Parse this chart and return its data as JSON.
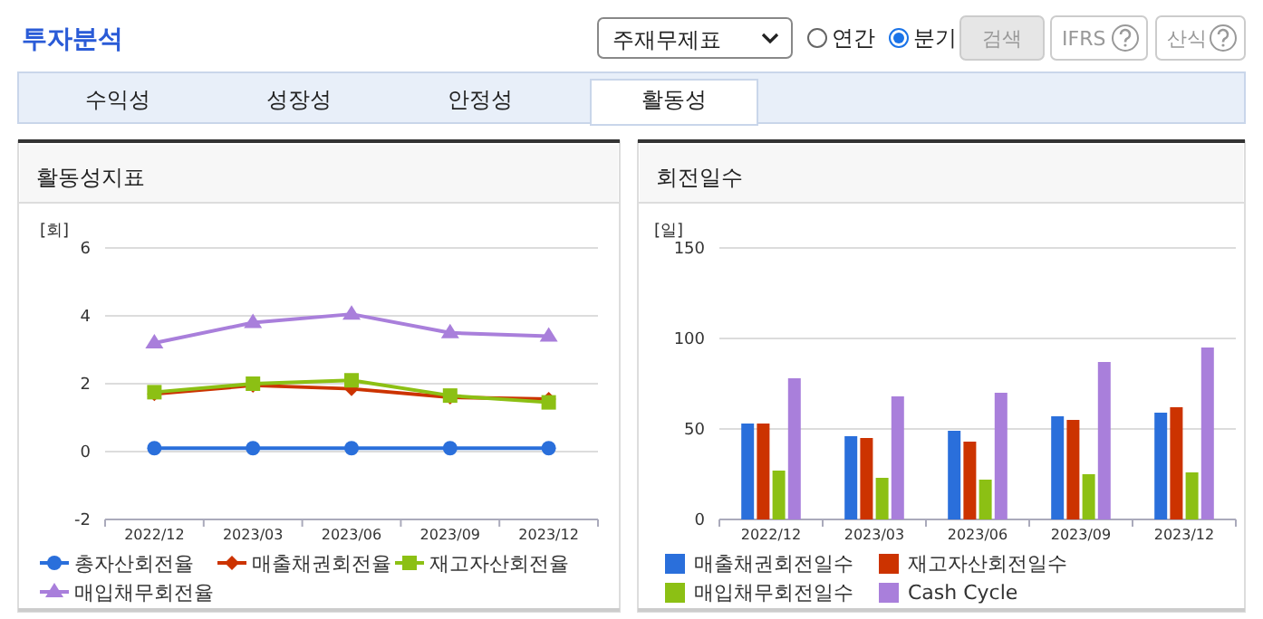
{
  "chart_data": [
    {
      "type": "other",
      "title": "투자분석",
      "annotations": [
        "주재무제표",
        "연간",
        "분기",
        "검색",
        "IFRS",
        "산식",
        "수익성",
        "성장성",
        "안정성",
        "활동성"
      ]
    },
    {
      "type": "line",
      "title": "활동성지표",
      "ylabel": "[회]",
      "categories": [
        "2022/12",
        "2023/03",
        "2023/06",
        "2023/09",
        "2023/12"
      ],
      "ylim": [
        -2,
        6
      ],
      "yticks": [
        -2,
        0,
        2,
        4,
        6
      ],
      "grid": "y",
      "legend": "bottom",
      "series": [
        {
          "name": "총자산회전율",
          "color": "#2a6fdb",
          "marker": "circle",
          "values": [
            0.1,
            0.1,
            0.1,
            0.1,
            0.1
          ]
        },
        {
          "name": "매출채권회전율",
          "color": "#cc3300",
          "marker": "diamond",
          "values": [
            1.7,
            1.95,
            1.85,
            1.6,
            1.55
          ]
        },
        {
          "name": "재고자산회전율",
          "color": "#8cc014",
          "marker": "square",
          "values": [
            1.75,
            2.0,
            2.1,
            1.65,
            1.45
          ]
        },
        {
          "name": "매입채무회전율",
          "color": "#a97fdb",
          "marker": "triangle",
          "values": [
            3.2,
            3.8,
            4.05,
            3.5,
            3.4
          ]
        }
      ]
    },
    {
      "type": "bar",
      "title": "회전일수",
      "ylabel": "[일]",
      "categories": [
        "2022/12",
        "2023/03",
        "2023/06",
        "2023/09",
        "2023/12"
      ],
      "ylim": [
        0,
        150
      ],
      "yticks": [
        0,
        50,
        100,
        150
      ],
      "grid": "y",
      "legend": "bottom",
      "series": [
        {
          "name": "매출채권회전일수",
          "color": "#2a6fdb",
          "values": [
            53,
            46,
            49,
            57,
            59
          ]
        },
        {
          "name": "재고자산회전일수",
          "color": "#cc3300",
          "values": [
            53,
            45,
            43,
            55,
            62
          ]
        },
        {
          "name": "매입채무회전일수",
          "color": "#8cc014",
          "values": [
            27,
            23,
            22,
            25,
            26
          ]
        },
        {
          "name": "Cash Cycle",
          "color": "#a97fdb",
          "values": [
            78,
            68,
            70,
            87,
            95
          ]
        }
      ]
    }
  ]
}
